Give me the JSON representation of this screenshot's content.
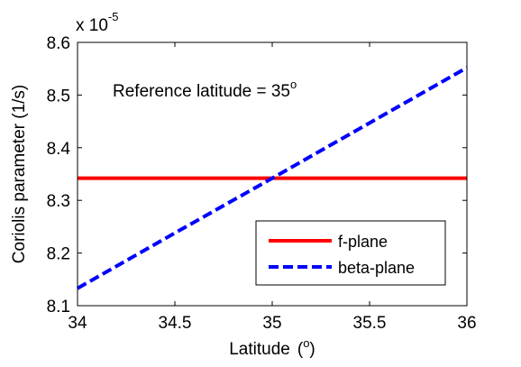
{
  "chart_data": {
    "type": "line",
    "xlabel": "Latitude",
    "xlabel_unit_open": "(",
    "xlabel_unit": "o",
    "xlabel_unit_close": ")",
    "ylabel": "Coriolis parameter (1/s)",
    "y_multiplier_base": "x 10",
    "y_multiplier_exp": "-5",
    "annotation_text": "Reference latitude = 35",
    "annotation_sup": "o",
    "xlim": [
      34,
      36
    ],
    "ylim": [
      8.1,
      8.6
    ],
    "xticks": [
      "34",
      "34.5",
      "35",
      "35.5",
      "36"
    ],
    "yticks": [
      "8.1",
      "8.2",
      "8.3",
      "8.4",
      "8.5",
      "8.6"
    ],
    "grid": false,
    "legend_position": "bottom-right",
    "series": [
      {
        "name": "f-plane",
        "style": "solid",
        "color": "#ff0000",
        "x": [
          34,
          36
        ],
        "y": [
          8.342,
          8.342
        ]
      },
      {
        "name": "beta-plane",
        "style": "dashed",
        "color": "#0000ff",
        "x": [
          34,
          34.5,
          35,
          35.5,
          36
        ],
        "y": [
          8.133,
          8.238,
          8.342,
          8.447,
          8.552
        ]
      }
    ]
  }
}
